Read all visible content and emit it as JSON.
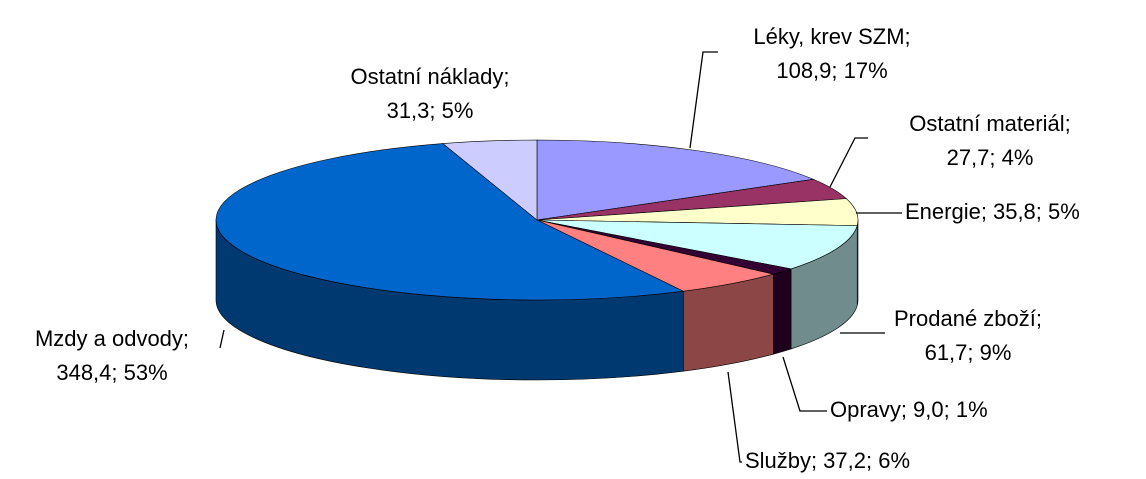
{
  "chart_data": {
    "type": "pie3d",
    "categories": [
      "Léky, krev SZM",
      "Ostatní materiál",
      "Energie",
      "Prodané zboží",
      "Opravy",
      "Služby",
      "Mzdy a odvody",
      "Ostatní náklady"
    ],
    "values": [
      108.9,
      27.7,
      35.8,
      61.7,
      9.0,
      37.2,
      348.4,
      31.3
    ],
    "value_labels": [
      "108,9; 17%",
      "27,7; 4%",
      "35,8; 5%",
      "61,7; 9%",
      "9,0; 1%",
      "37,2; 6%",
      "348,4; 53%",
      "31,3; 5%"
    ],
    "label_separator": ";",
    "colors": [
      "#9999ff",
      "#993366",
      "#ffffcc",
      "#ccffff",
      "#330033",
      "#ff8080",
      "#0066cc",
      "#ccccff"
    ]
  }
}
